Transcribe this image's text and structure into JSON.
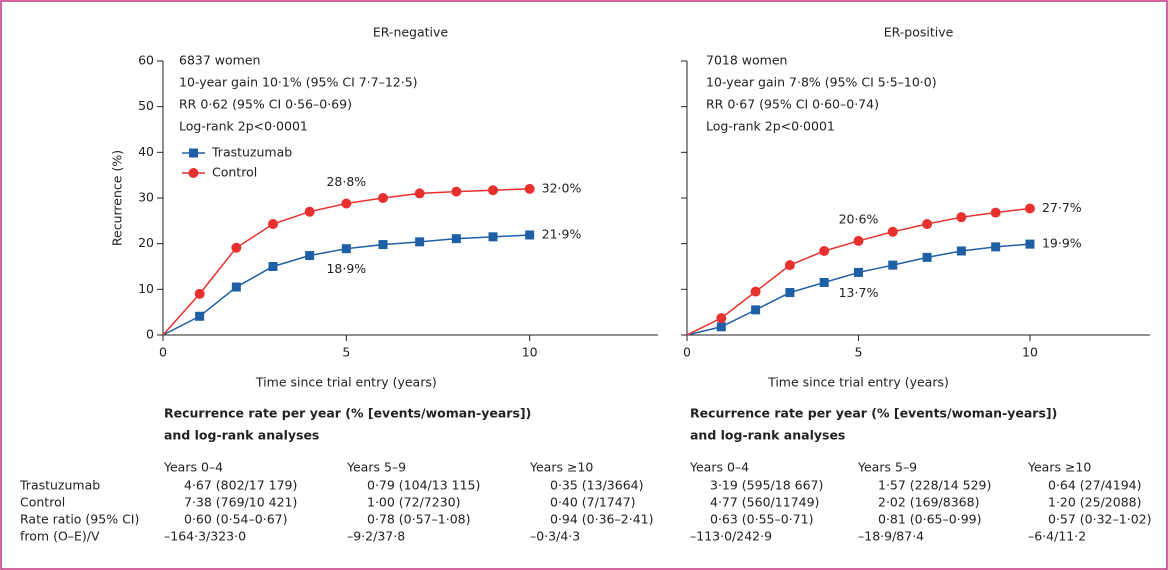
{
  "chart_data": [
    {
      "type": "line",
      "title": "ER-negative",
      "ylabel": "Recurrence (%)",
      "xlabel": "Time since trial entry (years)",
      "annotations": [
        "6837 women",
        "10-year gain 10·1% (95% CI 7·7–12·5)",
        "RR 0·62 (95% CI 0·56–0·69)",
        "Log-rank 2p<0·0001"
      ],
      "x": [
        0,
        1,
        2,
        3,
        4,
        5,
        6,
        7,
        8,
        9,
        10
      ],
      "series": [
        {
          "name": "Trastuzumab",
          "color": "#1f5fa6",
          "marker": "square",
          "values": [
            0,
            4.1,
            10.5,
            15,
            17.4,
            18.9,
            19.8,
            20.4,
            21.1,
            21.5,
            21.9
          ],
          "value_labels": [
            null,
            null,
            null,
            null,
            null,
            "18·9%",
            null,
            null,
            null,
            null,
            "21·9%"
          ]
        },
        {
          "name": "Control",
          "color": "#e8312f",
          "marker": "circle",
          "values": [
            0,
            9,
            19.1,
            24.3,
            27,
            28.8,
            30,
            31,
            31.4,
            31.7,
            32
          ],
          "value_labels": [
            null,
            null,
            null,
            null,
            null,
            "28·8%",
            null,
            null,
            null,
            null,
            "32·0%"
          ]
        }
      ],
      "xlim": [
        0,
        13.5
      ],
      "xticks": [
        0,
        5,
        10
      ],
      "ylim": [
        0,
        60
      ],
      "yticks": [
        0,
        10,
        20,
        30,
        40,
        50,
        60
      ],
      "legend": true
    },
    {
      "type": "line",
      "title": "ER-positive",
      "xlabel": "Time since trial entry (years)",
      "annotations": [
        "7018 women",
        "10-year gain 7·8% (95% CI 5·5–10·0)",
        "RR 0·67 (95% CI 0·60–0·74)",
        "Log-rank 2p<0·0001"
      ],
      "x": [
        0,
        1,
        2,
        3,
        4,
        5,
        6,
        7,
        8,
        9,
        10
      ],
      "series": [
        {
          "name": "Trastuzumab",
          "color": "#1f5fa6",
          "marker": "square",
          "values": [
            0,
            1.8,
            5.5,
            9.3,
            11.5,
            13.7,
            15.3,
            17,
            18.4,
            19.3,
            19.9
          ],
          "value_labels": [
            null,
            null,
            null,
            null,
            null,
            "13·7%",
            null,
            null,
            null,
            null,
            "19·9%"
          ]
        },
        {
          "name": "Control",
          "color": "#e8312f",
          "marker": "circle",
          "values": [
            0,
            3.7,
            9.5,
            15.3,
            18.4,
            20.6,
            22.6,
            24.3,
            25.8,
            26.8,
            27.7
          ],
          "value_labels": [
            null,
            null,
            null,
            null,
            null,
            "20·6%",
            null,
            null,
            null,
            null,
            "27·7%"
          ]
        }
      ],
      "xlim": [
        0,
        13.5
      ],
      "xticks": [
        0,
        5,
        10
      ],
      "ylim": [
        0,
        60
      ],
      "yticks": [
        0,
        10,
        20,
        30,
        40,
        50,
        60
      ],
      "ytick_labels": false,
      "legend": false
    }
  ],
  "row_labels": [
    "Trastuzumab",
    "Control",
    "Rate ratio (95% CI)",
    "from (O–E)/V"
  ],
  "tables": [
    {
      "title": [
        "Recurrence rate per year (% [events/woman-years])",
        "and log-rank analyses"
      ],
      "columns": [
        "Years 0–4",
        "Years 5–9",
        "Years ≥10"
      ],
      "rows": [
        [
          "4·67 (802/17 179)",
          "0·79 (104/13 115)",
          "0·35 (13/3664)"
        ],
        [
          "7·38 (769/10 421)",
          "1·00 (72/7230)",
          "0·40 (7/1747)"
        ],
        [
          "0·60 (0·54–0·67)",
          "0·78 (0·57–1·08)",
          "0·94 (0·36–2·41)"
        ],
        [
          "–164·3/323·0",
          "–9·2/37·8",
          "–0·3/4·3"
        ]
      ]
    },
    {
      "title": [
        "Recurrence rate per year (% [events/woman-years])",
        "and log-rank analyses"
      ],
      "columns": [
        "Years 0–4",
        "Years 5–9",
        "Years ≥10"
      ],
      "rows": [
        [
          "3·19 (595/18 667)",
          "1·57 (228/14 529)",
          "0·64 (27/4194)"
        ],
        [
          "4·77 (560/11749)",
          "2·02 (169/8368)",
          "1·20 (25/2088)"
        ],
        [
          "0·63 (0·55–0·71)",
          "0·81 (0·65–0·99)",
          "0·57 (0·32–1·02)"
        ],
        [
          "–113·0/242·9",
          "–18·9/87·4",
          "–6·4/11·2"
        ]
      ]
    }
  ]
}
